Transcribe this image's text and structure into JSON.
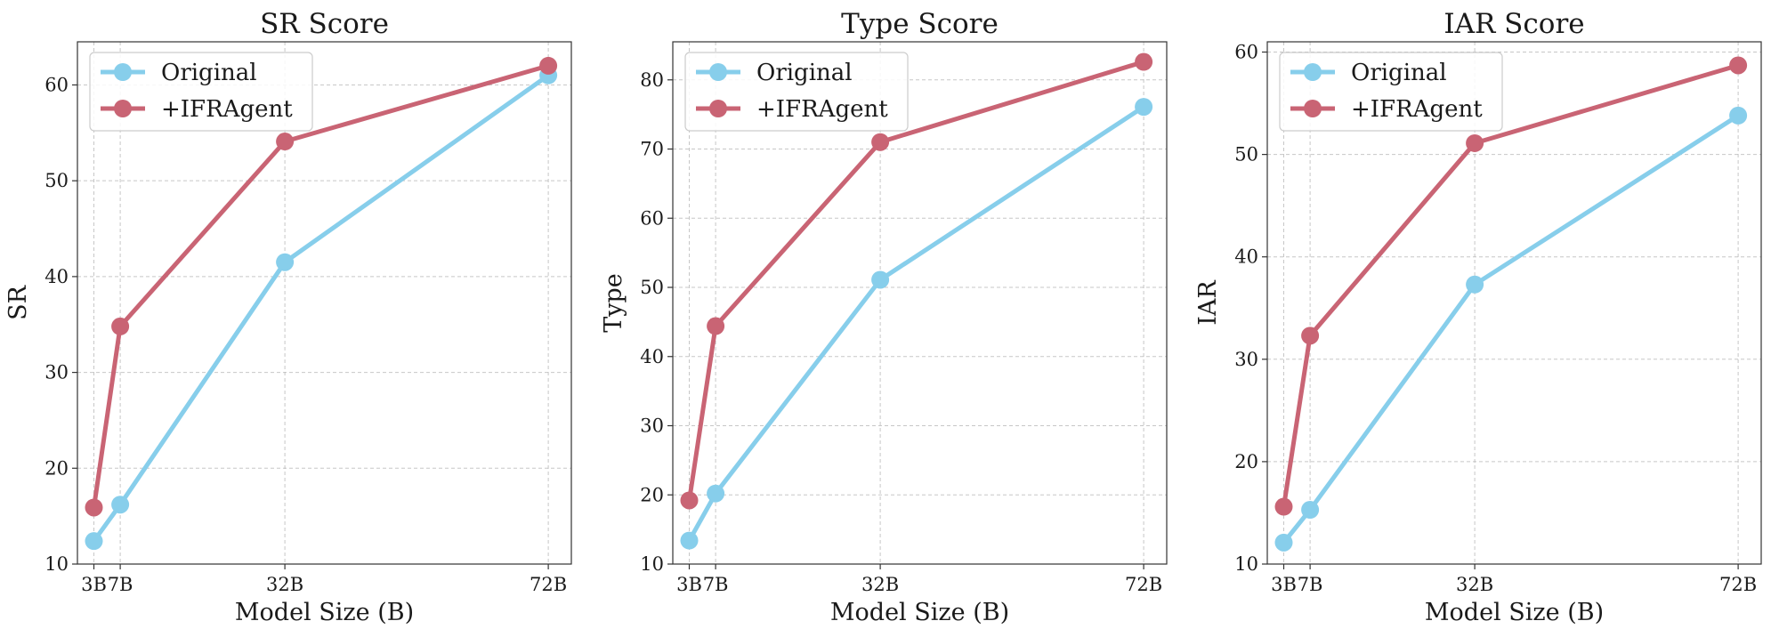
{
  "colors": {
    "original": "#87CEEB",
    "ifragent": "#C96474"
  },
  "chart_data": [
    {
      "type": "line",
      "title": "SR Score",
      "xlabel": "Model Size (B)",
      "ylabel": "SR",
      "x": [
        3,
        7,
        32,
        72
      ],
      "xticks": [
        3,
        7,
        32,
        72
      ],
      "xticklabels": [
        "3B",
        "7B",
        "32B",
        "72B"
      ],
      "xlim": [
        0.5,
        75.5
      ],
      "ylim": [
        10,
        64.5
      ],
      "yticks": [
        10,
        20,
        30,
        40,
        50,
        60
      ],
      "grid": true,
      "legend_position": "top-left",
      "series": [
        {
          "name": "Original",
          "color_key": "original",
          "values": [
            12.4,
            16.2,
            41.5,
            61.0
          ]
        },
        {
          "name": "+IFRAgent",
          "color_key": "ifragent",
          "values": [
            15.9,
            34.8,
            54.1,
            62.0
          ]
        }
      ]
    },
    {
      "type": "line",
      "title": "Type Score",
      "xlabel": "Model Size (B)",
      "ylabel": "Type",
      "x": [
        3,
        7,
        32,
        72
      ],
      "xticks": [
        3,
        7,
        32,
        72
      ],
      "xticklabels": [
        "3B",
        "7B",
        "32B",
        "72B"
      ],
      "xlim": [
        0.5,
        75.5
      ],
      "ylim": [
        10,
        85.5
      ],
      "yticks": [
        10,
        20,
        30,
        40,
        50,
        60,
        70,
        80
      ],
      "grid": true,
      "legend_position": "top-left",
      "series": [
        {
          "name": "Original",
          "color_key": "original",
          "values": [
            13.4,
            20.2,
            51.1,
            76.1
          ]
        },
        {
          "name": "+IFRAgent",
          "color_key": "ifragent",
          "values": [
            19.2,
            44.4,
            71.0,
            82.6
          ]
        }
      ]
    },
    {
      "type": "line",
      "title": "IAR Score",
      "xlabel": "Model Size (B)",
      "ylabel": "IAR",
      "x": [
        3,
        7,
        32,
        72
      ],
      "xticks": [
        3,
        7,
        32,
        72
      ],
      "xticklabels": [
        "3B",
        "7B",
        "32B",
        "72B"
      ],
      "xlim": [
        0.5,
        75.5
      ],
      "ylim": [
        10,
        61
      ],
      "yticks": [
        10,
        20,
        30,
        40,
        50,
        60
      ],
      "grid": true,
      "legend_position": "top-left",
      "series": [
        {
          "name": "Original",
          "color_key": "original",
          "values": [
            12.1,
            15.3,
            37.3,
            53.8
          ]
        },
        {
          "name": "+IFRAgent",
          "color_key": "ifragent",
          "values": [
            15.6,
            32.3,
            51.1,
            58.7
          ]
        }
      ]
    }
  ]
}
